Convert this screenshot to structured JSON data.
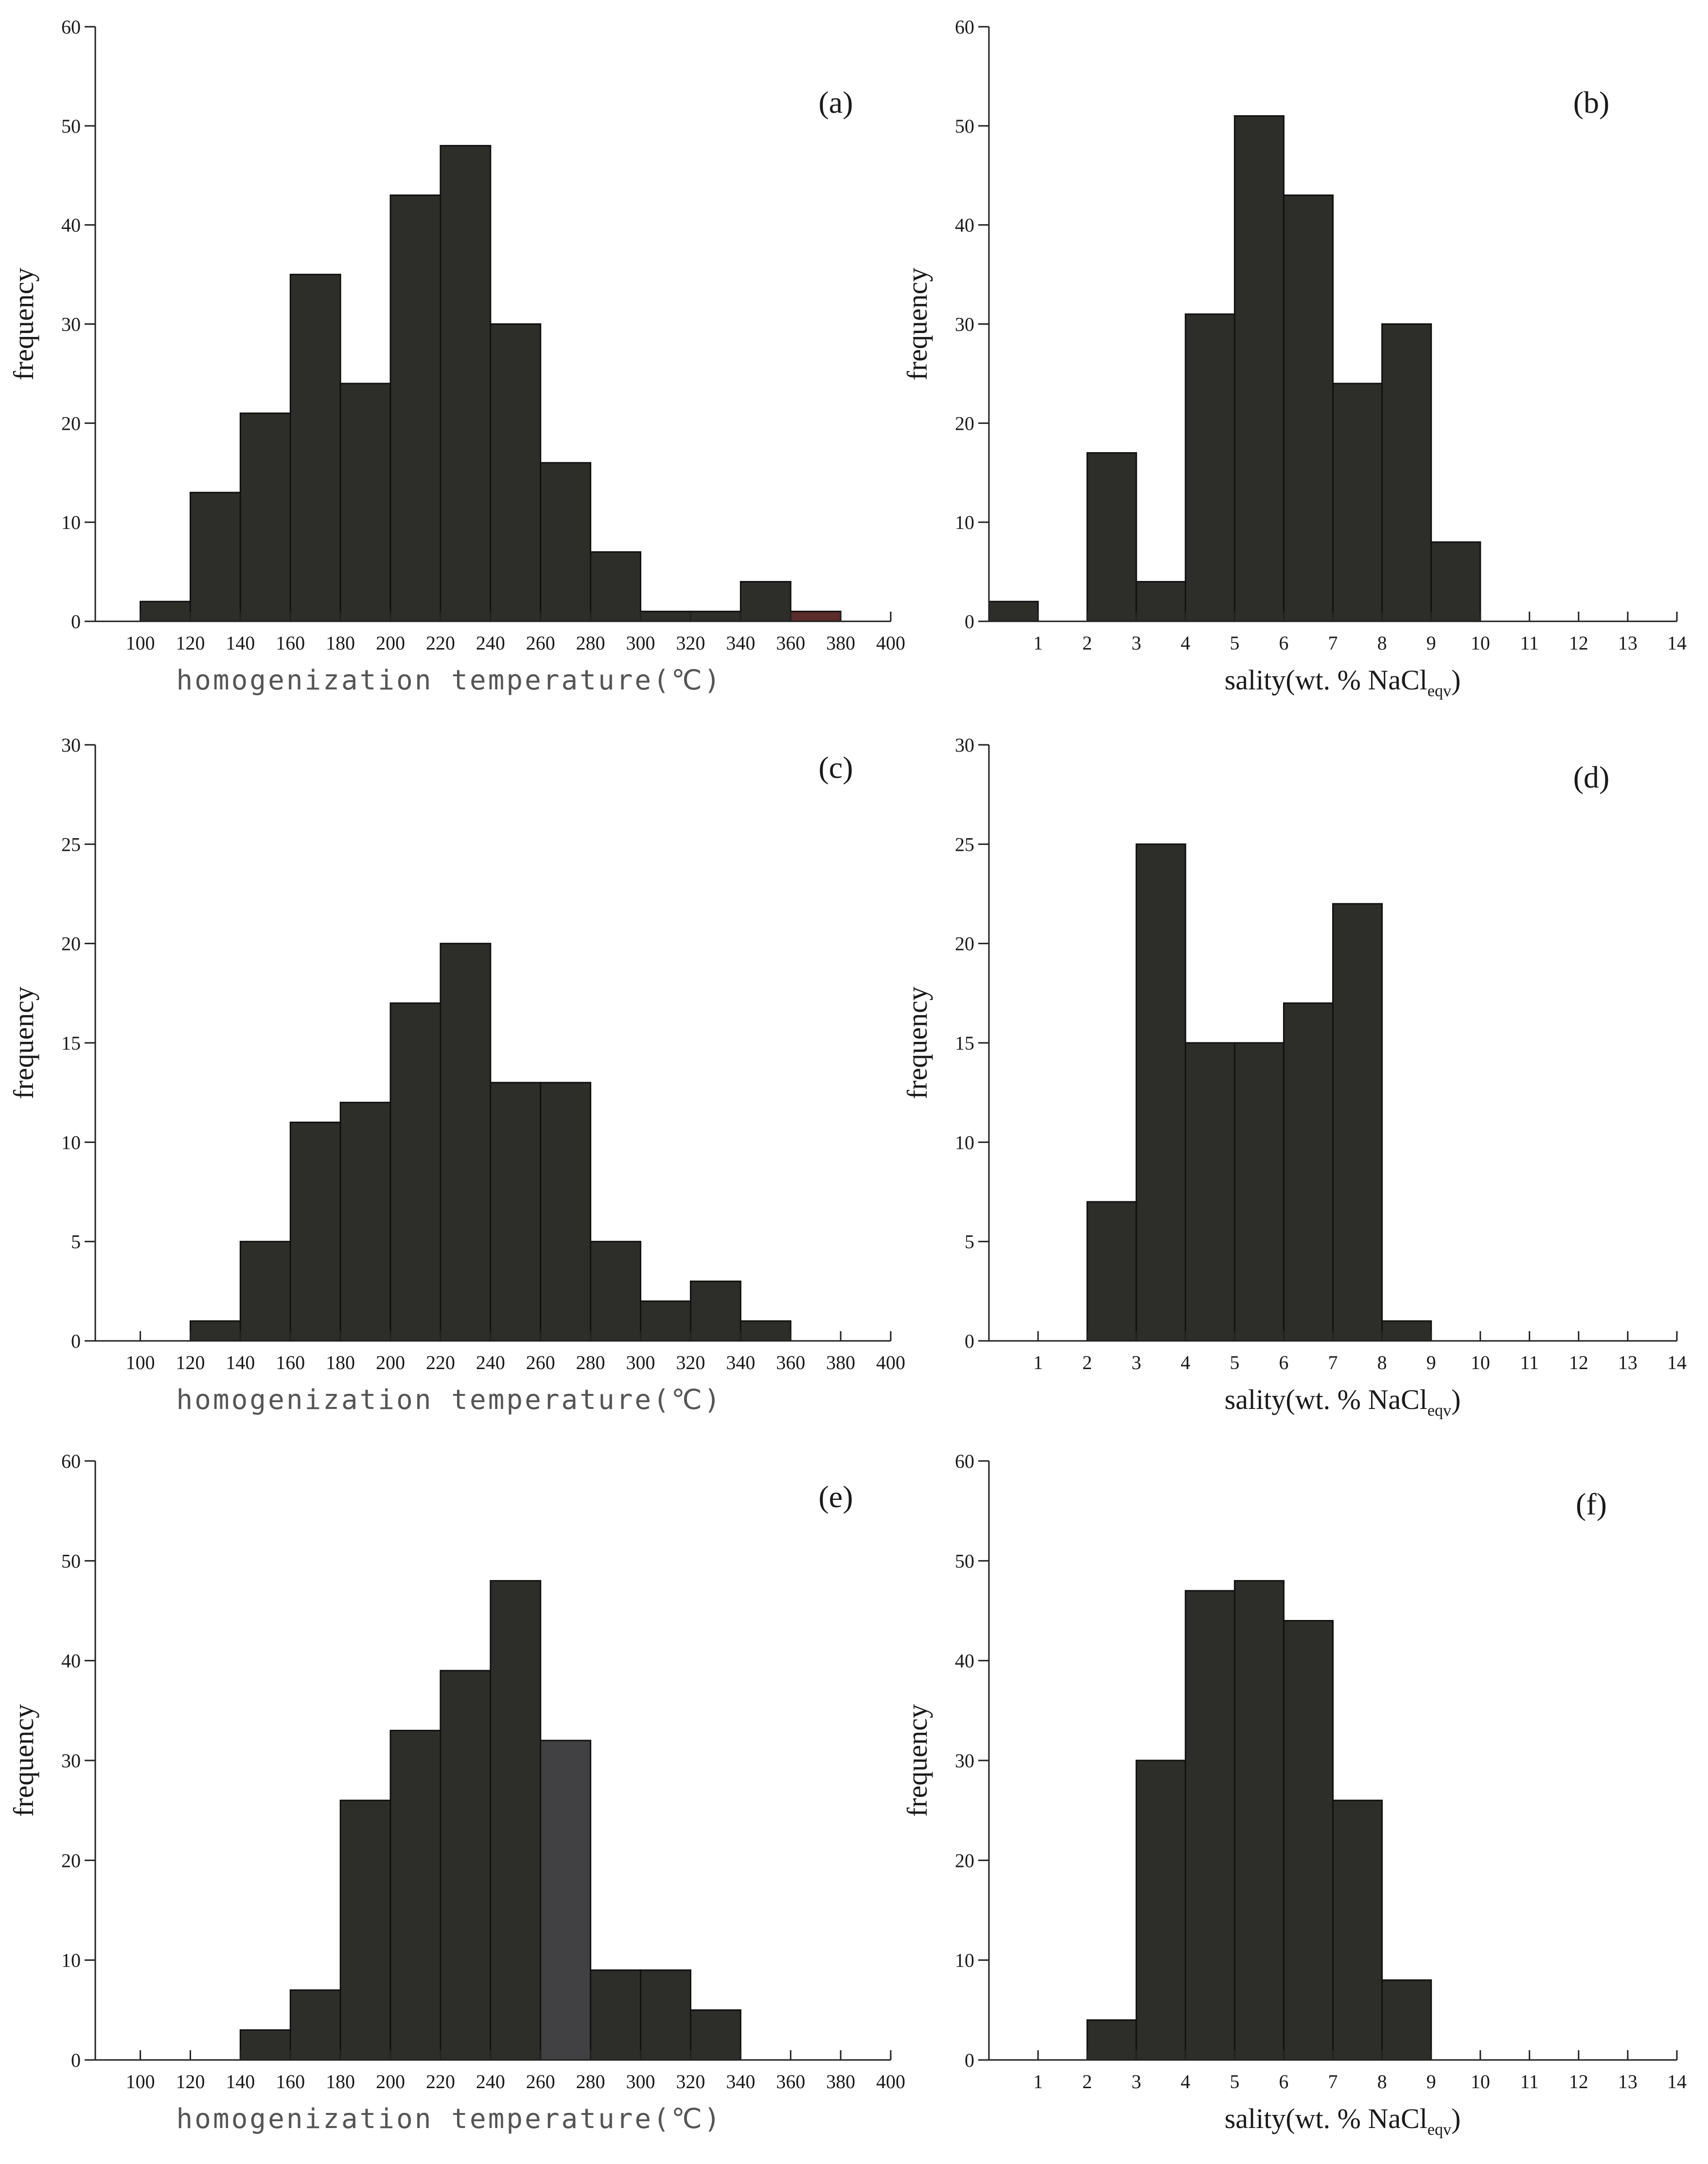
{
  "chart_data": [
    {
      "type": "bar",
      "panel_label": "(a)",
      "ylabel": "frequency",
      "xlabel": "homogenization temperature(℃)",
      "xlabel_style": "mono",
      "x_ticks": [
        "100",
        "120",
        "140",
        "160",
        "180",
        "200",
        "220",
        "240",
        "260",
        "280",
        "300",
        "320",
        "340",
        "360",
        "380",
        "400"
      ],
      "x_range": [
        82,
        400
      ],
      "ylim": [
        0,
        60
      ],
      "y_ticks": [
        "0",
        "10",
        "20",
        "30",
        "40",
        "50",
        "60"
      ],
      "bins": [
        [
          100,
          120
        ],
        [
          120,
          140
        ],
        [
          140,
          160
        ],
        [
          160,
          180
        ],
        [
          180,
          200
        ],
        [
          200,
          220
        ],
        [
          220,
          240
        ],
        [
          240,
          260
        ],
        [
          260,
          280
        ],
        [
          280,
          300
        ],
        [
          300,
          320
        ],
        [
          320,
          340
        ],
        [
          340,
          360
        ],
        [
          360,
          380
        ]
      ],
      "values": [
        2,
        13,
        21,
        35,
        24,
        43,
        48,
        30,
        16,
        7,
        1,
        1,
        4,
        1
      ],
      "bar_colors": [
        "#2d2d29",
        "#2d2d29",
        "#2d2d29",
        "#2d2d29",
        "#2d2d29",
        "#2d2d29",
        "#2d2d29",
        "#2d2d29",
        "#2d2d29",
        "#2d2d29",
        "#2d2d29",
        "#2d2d29",
        "#2d2d29",
        "#5a2c2a"
      ]
    },
    {
      "type": "bar",
      "panel_label": "(b)",
      "ylabel": "frequency",
      "xlabel_main": "sality(wt. % NaCl",
      "xlabel_sub": "eqv",
      "xlabel_end": ")",
      "xlabel_style": "serif",
      "x_ticks": [
        "1",
        "2",
        "3",
        "4",
        "5",
        "6",
        "7",
        "8",
        "9",
        "10",
        "11",
        "12",
        "13",
        "14"
      ],
      "x_range": [
        0,
        14
      ],
      "ylim": [
        0,
        60
      ],
      "y_ticks": [
        "0",
        "10",
        "20",
        "30",
        "40",
        "50",
        "60"
      ],
      "bins": [
        [
          0,
          1
        ],
        [
          2,
          3
        ],
        [
          3,
          4
        ],
        [
          4,
          5
        ],
        [
          5,
          6
        ],
        [
          6,
          7
        ],
        [
          7,
          8
        ],
        [
          8,
          9
        ],
        [
          9,
          10
        ]
      ],
      "values": [
        2,
        17,
        4,
        31,
        51,
        43,
        24,
        30,
        8
      ]
    },
    {
      "type": "bar",
      "panel_label": "(c)",
      "ylabel": "frequency",
      "xlabel": "homogenization temperature(℃)",
      "xlabel_style": "mono",
      "x_ticks": [
        "100",
        "120",
        "140",
        "160",
        "180",
        "200",
        "220",
        "240",
        "260",
        "280",
        "300",
        "320",
        "340",
        "360",
        "380",
        "400"
      ],
      "x_range": [
        82,
        400
      ],
      "ylim": [
        0,
        30
      ],
      "y_ticks": [
        "0",
        "5",
        "10",
        "15",
        "20",
        "25",
        "30"
      ],
      "bins": [
        [
          120,
          140
        ],
        [
          140,
          160
        ],
        [
          160,
          180
        ],
        [
          180,
          200
        ],
        [
          200,
          220
        ],
        [
          220,
          240
        ],
        [
          240,
          260
        ],
        [
          260,
          280
        ],
        [
          280,
          300
        ],
        [
          300,
          320
        ],
        [
          320,
          340
        ],
        [
          340,
          360
        ]
      ],
      "values": [
        1,
        5,
        11,
        12,
        17,
        20,
        13,
        13,
        5,
        2,
        3,
        1
      ]
    },
    {
      "type": "bar",
      "panel_label": "(d)",
      "ylabel": "frequency",
      "xlabel_main": "sality(wt. % NaCl",
      "xlabel_sub": "eqv",
      "xlabel_end": ")",
      "xlabel_style": "serif",
      "x_ticks": [
        "1",
        "2",
        "3",
        "4",
        "5",
        "6",
        "7",
        "8",
        "9",
        "10",
        "11",
        "12",
        "13",
        "14"
      ],
      "x_range": [
        0,
        14
      ],
      "ylim": [
        0,
        30
      ],
      "y_ticks": [
        "0",
        "5",
        "10",
        "15",
        "20",
        "25",
        "30"
      ],
      "bins": [
        [
          2,
          3
        ],
        [
          3,
          4
        ],
        [
          4,
          5
        ],
        [
          5,
          6
        ],
        [
          6,
          7
        ],
        [
          7,
          8
        ],
        [
          8,
          9
        ]
      ],
      "values": [
        7,
        25,
        15,
        15,
        17,
        22,
        1
      ]
    },
    {
      "type": "bar",
      "panel_label": "(e)",
      "ylabel": "frequency",
      "xlabel": "homogenization temperature(℃)",
      "xlabel_style": "mono",
      "x_ticks": [
        "100",
        "120",
        "140",
        "160",
        "180",
        "200",
        "220",
        "240",
        "260",
        "280",
        "300",
        "320",
        "340",
        "360",
        "380",
        "400"
      ],
      "x_range": [
        82,
        400
      ],
      "ylim": [
        0,
        60
      ],
      "y_ticks": [
        "0",
        "10",
        "20",
        "30",
        "40",
        "50",
        "60"
      ],
      "bins": [
        [
          140,
          160
        ],
        [
          160,
          180
        ],
        [
          180,
          200
        ],
        [
          200,
          220
        ],
        [
          220,
          240
        ],
        [
          240,
          260
        ],
        [
          260,
          280
        ],
        [
          280,
          300
        ],
        [
          300,
          320
        ],
        [
          320,
          340
        ]
      ],
      "values": [
        3,
        7,
        26,
        33,
        39,
        48,
        32,
        9,
        9,
        5
      ],
      "bar_colors": [
        "#2d2d29",
        "#2d2d29",
        "#2d2d29",
        "#2d2d29",
        "#2d2d29",
        "#2d2d29",
        "#414143",
        "#2d2d29",
        "#2d2d29",
        "#2d2d29"
      ]
    },
    {
      "type": "bar",
      "panel_label": "(f)",
      "ylabel": "frequency",
      "xlabel_main": "sality(wt. % NaCl",
      "xlabel_sub": "eqv",
      "xlabel_end": ")",
      "xlabel_style": "serif",
      "x_ticks": [
        "1",
        "2",
        "3",
        "4",
        "5",
        "6",
        "7",
        "8",
        "9",
        "10",
        "11",
        "12",
        "13",
        "14"
      ],
      "x_range": [
        0,
        14
      ],
      "ylim": [
        0,
        60
      ],
      "y_ticks": [
        "0",
        "10",
        "20",
        "30",
        "40",
        "50",
        "60"
      ],
      "bins": [
        [
          2,
          3
        ],
        [
          3,
          4
        ],
        [
          4,
          5
        ],
        [
          5,
          6
        ],
        [
          6,
          7
        ],
        [
          7,
          8
        ],
        [
          8,
          9
        ]
      ],
      "values": [
        4,
        30,
        47,
        48,
        44,
        26,
        8
      ]
    }
  ],
  "colors": {
    "bar_fill": "#2d2d29",
    "bar_stroke": "#111111",
    "axis": "#222222"
  }
}
